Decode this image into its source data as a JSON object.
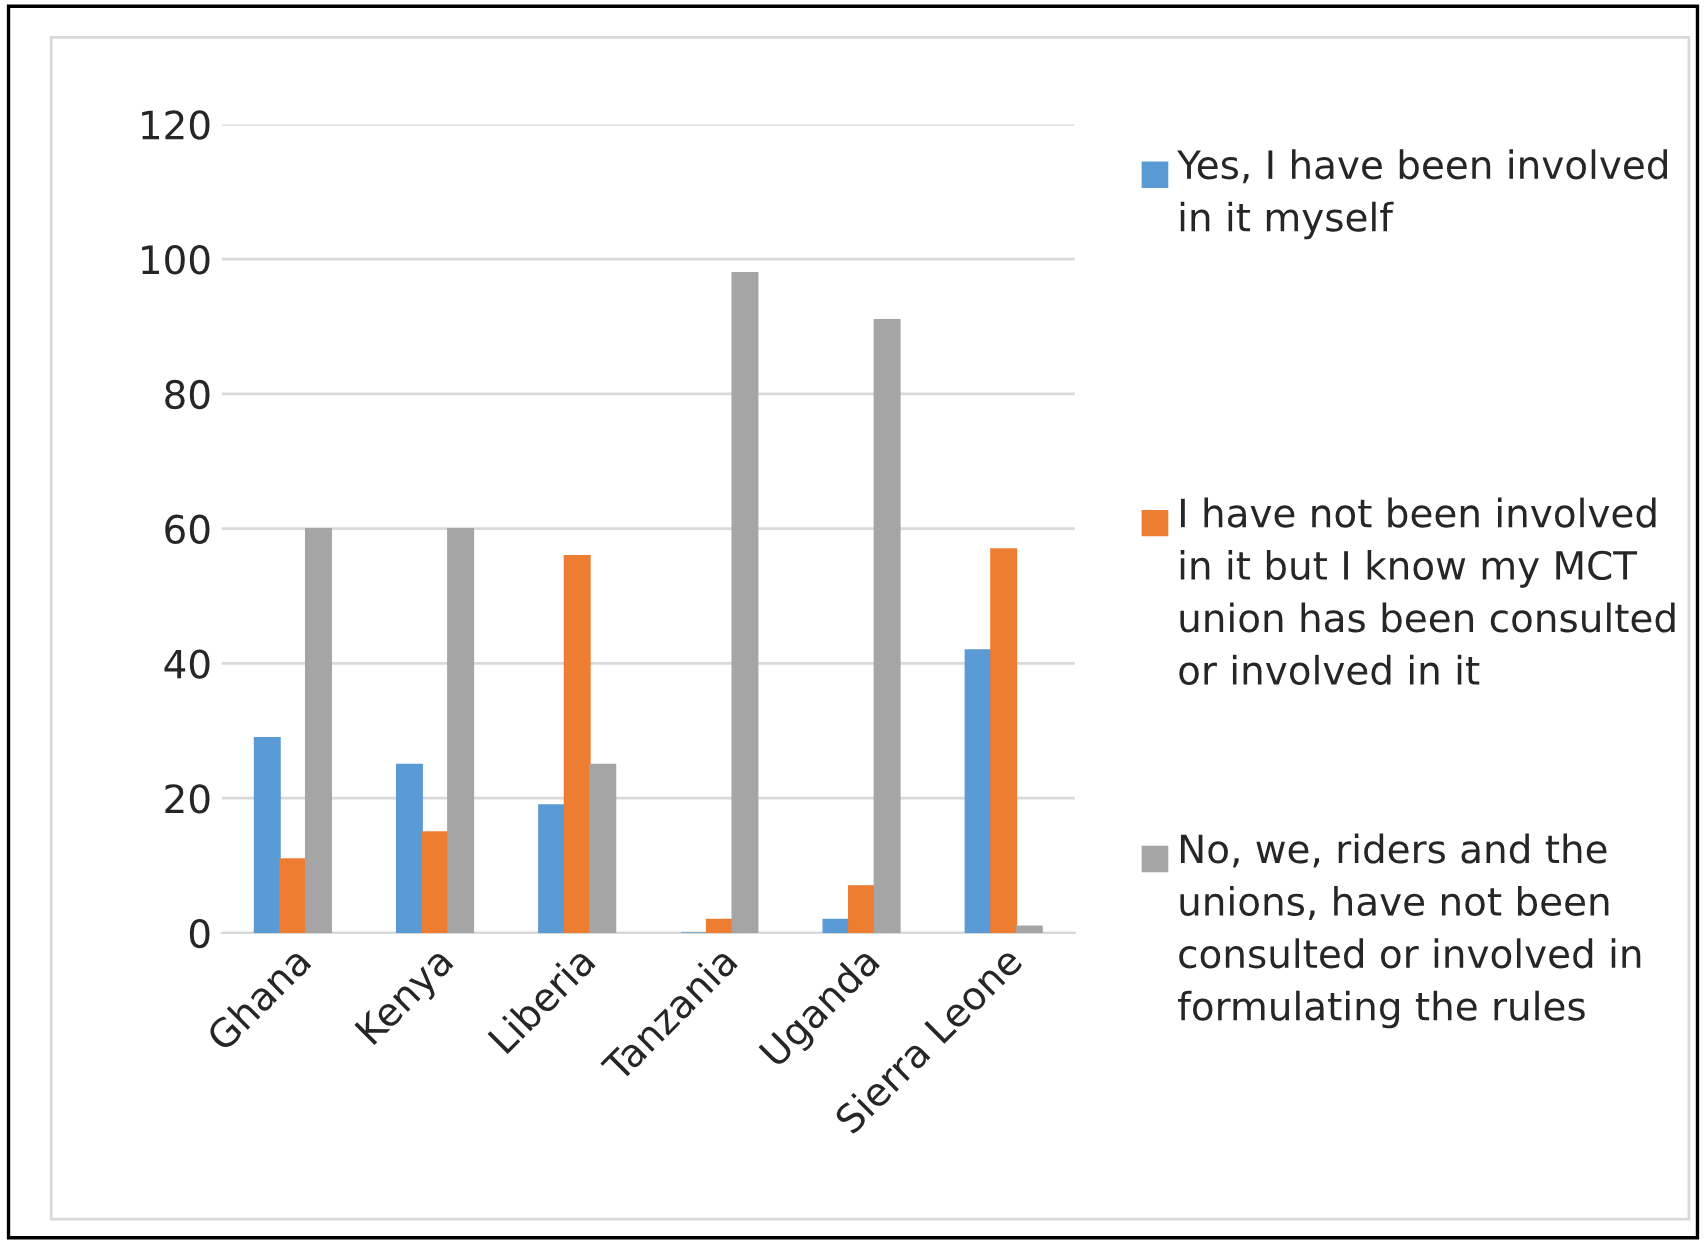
{
  "chart_data": {
    "type": "bar",
    "categories": [
      "Ghana",
      "Kenya",
      "Liberia",
      "Tanzania",
      "Uganda",
      "Sierra Leone"
    ],
    "series": [
      {
        "name": "Yes, I have been involved in it myself",
        "color": "#5b9bd5",
        "values": [
          29,
          25,
          19,
          0,
          2,
          42
        ]
      },
      {
        "name": "I have not been involved in it but I know my MCT union has been consulted or involved in it",
        "color": "#ed7d31",
        "values": [
          11,
          15,
          56,
          2,
          7,
          57
        ]
      },
      {
        "name": "No, we, riders and the unions, have not been consulted or involved in formulating the rules",
        "color": "#a5a5a5",
        "values": [
          60,
          60,
          25,
          98,
          91,
          1
        ]
      }
    ],
    "ylim": [
      0,
      120
    ],
    "yticks": [
      0,
      20,
      40,
      60,
      80,
      100,
      120
    ],
    "grid": "y",
    "legend": "right"
  }
}
